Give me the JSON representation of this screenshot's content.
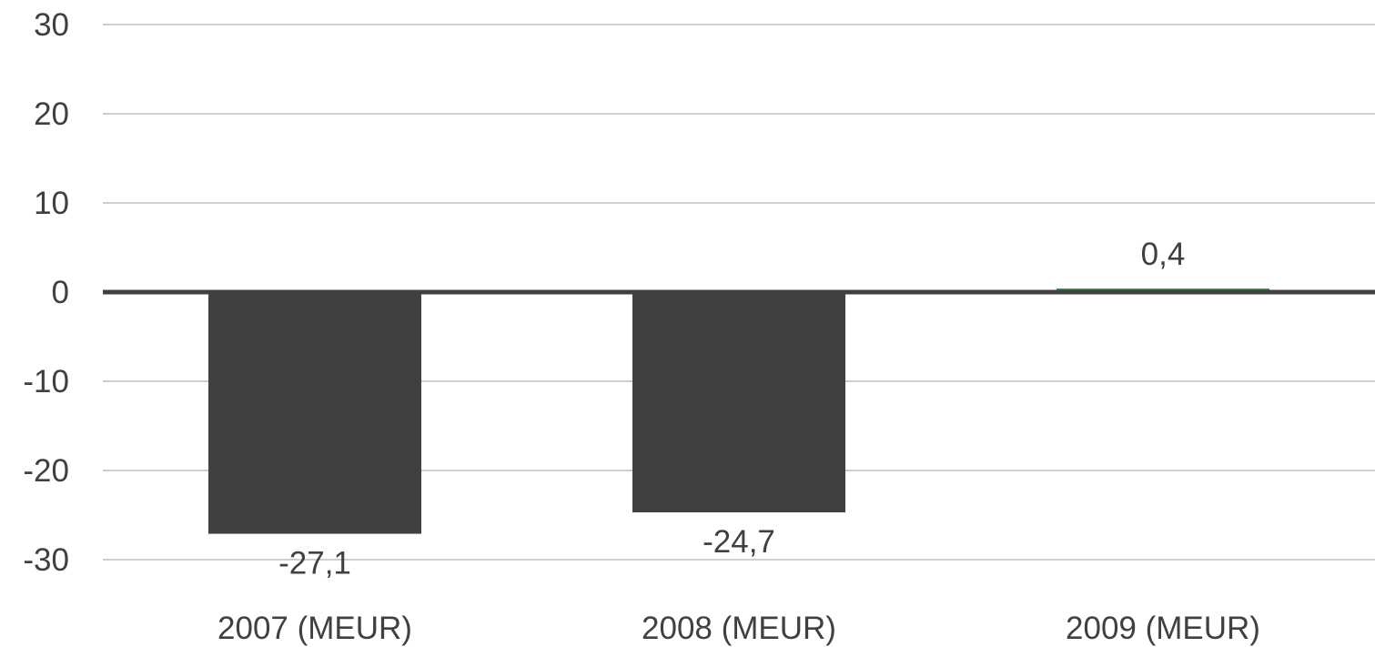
{
  "chart_data": {
    "type": "bar",
    "categories": [
      "2007 (MEUR)",
      "2008 (MEUR)",
      "2009 (MEUR)"
    ],
    "values": [
      -27.1,
      -24.7,
      0.4
    ],
    "data_labels": [
      "-27,1",
      "-24,7",
      "0,4"
    ],
    "y_ticks": [
      30,
      20,
      10,
      0,
      -10,
      -20,
      -30
    ],
    "y_tick_labels": [
      "30",
      "20",
      "10",
      "0",
      "-10",
      "-20",
      "-30"
    ],
    "ylim": [
      -30,
      30
    ],
    "grid": true,
    "legend": "none",
    "colors": {
      "negative_bar": "#404040",
      "positive_bar": "#2e9b3a",
      "gridline": "#bfbfbf",
      "zero_line": "#404040",
      "text": "#404040"
    }
  }
}
